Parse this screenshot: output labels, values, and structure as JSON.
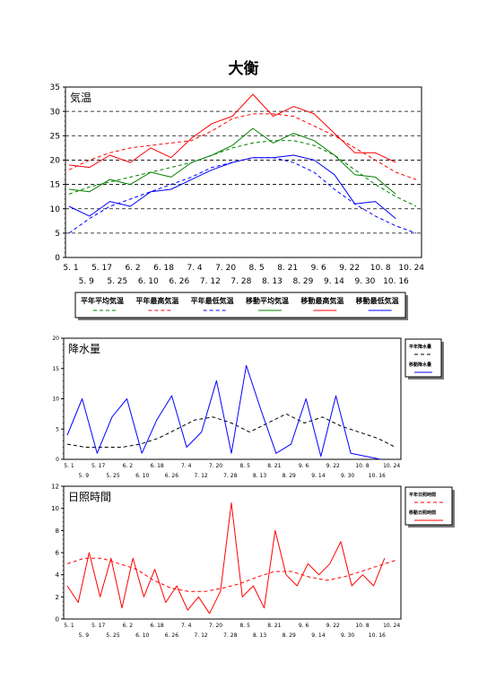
{
  "page": {
    "title": "大衡"
  },
  "chart_data": [
    {
      "type": "line",
      "title": "気温",
      "ylim": [
        0,
        35
      ],
      "yticks": [
        0,
        5,
        10,
        15,
        20,
        25,
        30,
        35
      ],
      "x_labels_row1": [
        "5. 1",
        "5. 17",
        "6. 2",
        "6. 18",
        "7. 4",
        "7. 20",
        "8. 5",
        "8. 21",
        "9. 6",
        "9. 22",
        "10. 8",
        "10. 24"
      ],
      "x_labels_row2": [
        "5. 9",
        "5. 25",
        "6. 10",
        "6. 26",
        "7. 12",
        "7. 28",
        "8. 13",
        "8. 29",
        "9. 14",
        "9. 30",
        "10. 16"
      ],
      "grid": "horizontal dashed",
      "legend_position": "bottom",
      "series": [
        {
          "name": "平年平均気温",
          "color": "#008000",
          "style": "dashed",
          "values": [
            13.0,
            14.5,
            15.5,
            16.5,
            17.5,
            18.5,
            19.5,
            21.0,
            22.5,
            23.5,
            24.0,
            24.0,
            23.0,
            21.0,
            18.0,
            15.0,
            12.5,
            10.5
          ]
        },
        {
          "name": "平年最高気温",
          "color": "#ff0000",
          "style": "dashed",
          "values": [
            18.0,
            20.0,
            21.5,
            22.5,
            23.0,
            23.5,
            24.0,
            26.0,
            28.5,
            29.5,
            29.5,
            29.0,
            27.0,
            25.0,
            22.5,
            20.0,
            17.5,
            16.0
          ]
        },
        {
          "name": "平年最低気温",
          "color": "#0000ff",
          "style": "dashed",
          "values": [
            5.0,
            8.0,
            10.5,
            12.0,
            13.5,
            15.0,
            16.5,
            18.5,
            19.5,
            20.5,
            20.5,
            19.5,
            17.5,
            14.0,
            11.0,
            8.5,
            6.5,
            5.0
          ]
        },
        {
          "name": "移動平均気温",
          "color": "#008000",
          "style": "solid",
          "values": [
            14.0,
            13.5,
            16.0,
            15.0,
            17.5,
            16.5,
            19.5,
            21.0,
            23.0,
            26.5,
            23.5,
            25.5,
            24.0,
            21.0,
            17.0,
            16.5,
            13.0,
            null
          ]
        },
        {
          "name": "移動最高気温",
          "color": "#ff0000",
          "style": "solid",
          "values": [
            19.0,
            18.5,
            21.0,
            19.5,
            22.5,
            20.5,
            24.5,
            27.5,
            29.0,
            33.5,
            29.0,
            31.0,
            29.5,
            25.5,
            21.5,
            21.5,
            19.5,
            null
          ]
        },
        {
          "name": "移動最低気温",
          "color": "#0000ff",
          "style": "solid",
          "values": [
            10.5,
            8.5,
            11.5,
            10.5,
            13.5,
            14.0,
            16.0,
            18.0,
            19.5,
            20.5,
            20.5,
            21.0,
            20.0,
            17.0,
            11.0,
            11.5,
            8.0,
            null
          ]
        }
      ]
    },
    {
      "type": "line",
      "title": "降水量",
      "ylim": [
        0,
        20
      ],
      "yticks": [
        0,
        5,
        10,
        15,
        20
      ],
      "x_labels_row1": [
        "5. 1",
        "5. 17",
        "6. 2",
        "6. 18",
        "7. 4",
        "7. 20",
        "8. 5",
        "8. 21",
        "9. 6",
        "9. 22",
        "10. 8",
        "10. 24"
      ],
      "x_labels_row2": [
        "5. 9",
        "5. 25",
        "6. 10",
        "6. 26",
        "7. 12",
        "7. 28",
        "8. 13",
        "8. 29",
        "9. 14",
        "9. 30",
        "10. 16"
      ],
      "legend_position": "right",
      "series": [
        {
          "name": "平年降水量",
          "color": "#000000",
          "style": "dashed",
          "values": [
            2.5,
            2.0,
            2.0,
            2.0,
            2.5,
            3.5,
            5.0,
            6.5,
            7.0,
            6.0,
            4.5,
            6.0,
            7.5,
            6.0,
            7.0,
            5.5,
            4.5,
            3.5,
            2.0
          ]
        },
        {
          "name": "移動降水量",
          "color": "#0000ff",
          "style": "solid",
          "values": [
            4.0,
            10.0,
            1.0,
            7.0,
            10.0,
            1.0,
            6.5,
            10.5,
            2.0,
            4.5,
            13.0,
            1.0,
            15.5,
            8.0,
            1.0,
            2.5,
            10.0,
            0.5,
            10.5,
            1.0,
            0.5,
            0.0,
            null
          ]
        }
      ]
    },
    {
      "type": "line",
      "title": "日照時間",
      "ylim": [
        0,
        12
      ],
      "yticks": [
        0,
        2,
        4,
        6,
        8,
        10,
        12
      ],
      "x_labels_row1": [
        "5. 1",
        "5. 17",
        "6. 2",
        "6. 18",
        "7. 4",
        "7. 20",
        "8. 5",
        "8. 21",
        "9. 6",
        "9. 22",
        "10. 8",
        "10. 24"
      ],
      "x_labels_row2": [
        "5. 9",
        "5. 25",
        "6. 10",
        "6. 26",
        "7. 12",
        "7. 28",
        "8. 13",
        "8. 29",
        "9. 14",
        "9. 30",
        "10. 16"
      ],
      "legend_position": "right",
      "series": [
        {
          "name": "平年日照時間",
          "color": "#ff0000",
          "style": "dashed",
          "values": [
            5.0,
            5.5,
            5.5,
            5.0,
            4.5,
            3.5,
            2.8,
            2.5,
            2.5,
            2.8,
            3.2,
            3.8,
            4.3,
            4.3,
            3.8,
            3.5,
            3.8,
            4.3,
            4.8,
            5.3
          ]
        },
        {
          "name": "移動日照時間",
          "color": "#ff0000",
          "style": "solid",
          "values": [
            3.0,
            1.5,
            6.0,
            2.0,
            5.5,
            1.0,
            5.5,
            2.0,
            4.5,
            1.5,
            3.0,
            0.8,
            2.0,
            0.5,
            2.5,
            10.5,
            2.0,
            3.0,
            1.0,
            8.0,
            4.0,
            3.0,
            5.0,
            4.0,
            5.0,
            7.0,
            3.0,
            4.0,
            3.0,
            5.5,
            null
          ]
        }
      ]
    }
  ],
  "legend_top": {
    "entries": [
      {
        "label": "平年平均気温",
        "color": "#008000",
        "style": "dashed"
      },
      {
        "label": "平年最高気温",
        "color": "#ff0000",
        "style": "dashed"
      },
      {
        "label": "平年最低気温",
        "color": "#0000ff",
        "style": "dashed"
      },
      {
        "label": "移動平均気温",
        "color": "#008000",
        "style": "solid"
      },
      {
        "label": "移動最高気温",
        "color": "#ff0000",
        "style": "solid"
      },
      {
        "label": "移動最低気温",
        "color": "#0000ff",
        "style": "solid"
      }
    ]
  },
  "legend_precip": {
    "entries": [
      {
        "label": "平年降水量",
        "color": "#000000",
        "style": "dashed"
      },
      {
        "label": "移動降水量",
        "color": "#0000ff",
        "style": "solid"
      }
    ]
  },
  "legend_sun": {
    "entries": [
      {
        "label": "平年日照時間",
        "color": "#ff0000",
        "style": "dashed"
      },
      {
        "label": "移動日照時間",
        "color": "#ff0000",
        "style": "solid"
      }
    ]
  }
}
